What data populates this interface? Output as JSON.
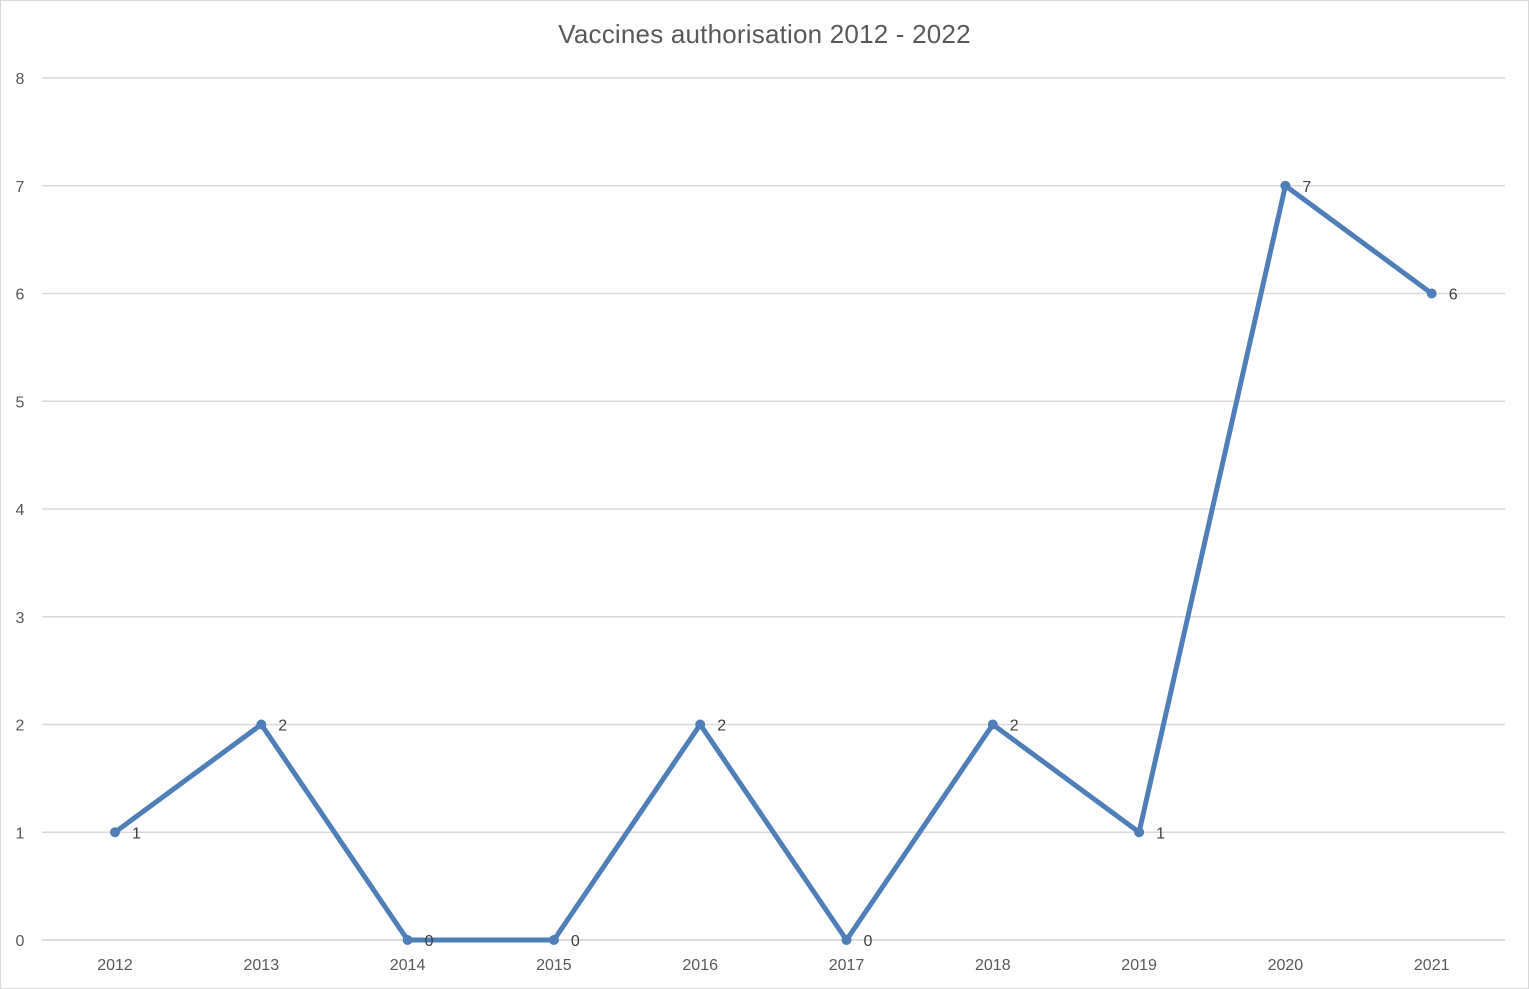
{
  "chart_data": {
    "type": "line",
    "title": "Vaccines authorisation 2012 - 2022",
    "xlabel": "",
    "ylabel": "",
    "categories": [
      "2012",
      "2013",
      "2014",
      "2015",
      "2016",
      "2017",
      "2018",
      "2019",
      "2020",
      "2021"
    ],
    "series": [
      {
        "values": [
          1,
          2,
          0,
          0,
          2,
          0,
          2,
          1,
          7,
          6
        ],
        "color": "#4f7eb8"
      }
    ],
    "ylim": [
      0,
      8
    ],
    "yticks": [
      0,
      1,
      2,
      3,
      4,
      5,
      6,
      7,
      8
    ],
    "grid": true,
    "legend": "none",
    "data_labels": true
  }
}
